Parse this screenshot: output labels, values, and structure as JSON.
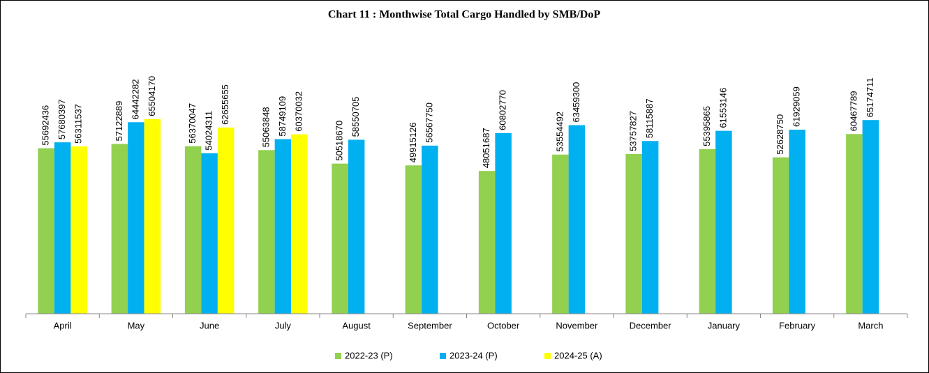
{
  "chart_data": {
    "type": "bar",
    "title": "Chart 11 : Monthwise Total Cargo Handled by SMB/DoP",
    "categories": [
      "April",
      "May",
      "June",
      "July",
      "August",
      "September",
      "October",
      "November",
      "December",
      "January",
      "February",
      "March"
    ],
    "series": [
      {
        "name": "2022-23 (P)",
        "color": "#92d050",
        "values": [
          55692436,
          57122889,
          56370047,
          55063848,
          50518670,
          49915126,
          48051687,
          53554492,
          53757827,
          55395865,
          52628750,
          60467789
        ]
      },
      {
        "name": "2023-24 (P)",
        "color": "#00b0f0",
        "values": [
          57680397,
          64442282,
          54024311,
          58749109,
          58550705,
          56567750,
          60802770,
          63459300,
          58115887,
          61553146,
          61929059,
          65174711
        ]
      },
      {
        "name": "2024-25 (A)",
        "color": "#ffff00",
        "values": [
          56311537,
          65504170,
          62655655,
          60370032,
          null,
          null,
          null,
          null,
          null,
          null,
          null,
          null
        ]
      }
    ],
    "ylim": [
      0,
      80000000
    ],
    "legend": "bottom"
  }
}
